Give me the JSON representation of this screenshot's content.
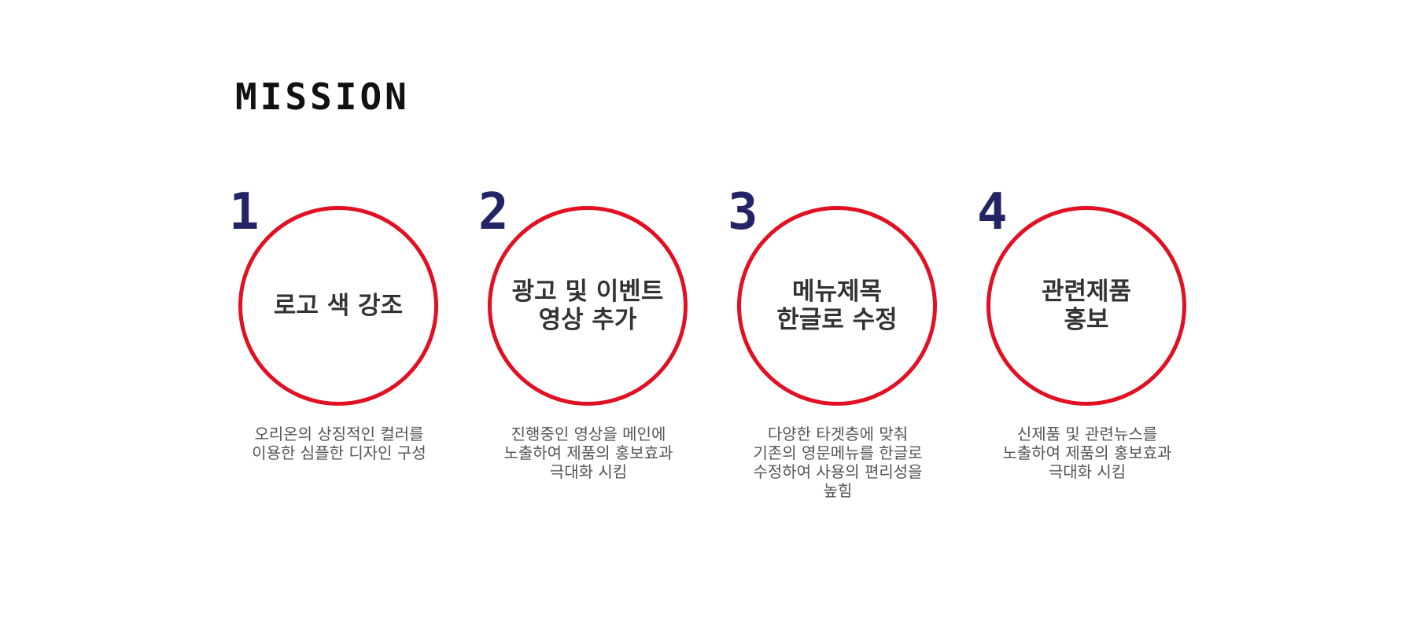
{
  "heading": "MISSION",
  "steps": [
    {
      "number": "1",
      "title": "로고 색 강조",
      "description": "오리온의 상징적인 컬러를\n이용한 심플한 디자인 구성"
    },
    {
      "number": "2",
      "title": "광고 및 이벤트\n영상 추가",
      "description": "진행중인 영상을 메인에\n노출하여 제품의 홍보효과\n극대화 시킴"
    },
    {
      "number": "3",
      "title": "메뉴제목\n한글로 수정",
      "description": "다양한 타겟층에 맞춰\n기존의 영문메뉴를 한글로\n수정하여 사용의 편리성을\n높힘"
    },
    {
      "number": "4",
      "title": "관련제품\n홍보",
      "description": "신제품 및 관련뉴스를\n노출하여 제품의 홍보효과\n극대화 시킴"
    }
  ],
  "colors": {
    "circle_border": "#e11022",
    "number": "#232466",
    "heading": "#111111"
  }
}
